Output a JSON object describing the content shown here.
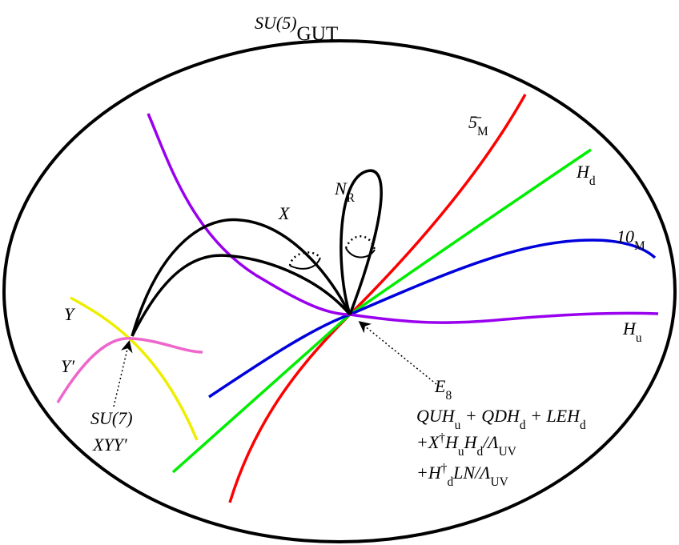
{
  "title": [
    {
      "text": "SU(5)"
    },
    {
      "sub": "GUT"
    }
  ],
  "labels": [
    [
      {
        "text": "5̄"
      },
      {
        "sub": "M"
      }
    ],
    [
      {
        "text": "H"
      },
      {
        "sub": "d"
      }
    ],
    [
      {
        "text": "10"
      },
      {
        "sub": "M"
      }
    ],
    [
      {
        "text": "H"
      },
      {
        "sub": "u"
      }
    ],
    [
      {
        "text": "N"
      },
      {
        "sub": "R"
      }
    ],
    [
      {
        "text": "X"
      }
    ],
    [
      {
        "text": "Y"
      }
    ],
    [
      {
        "text": "Y′"
      }
    ],
    [
      {
        "text": "E"
      },
      {
        "sub": "8"
      }
    ],
    [
      {
        "text": "SU(7)"
      }
    ],
    [
      {
        "text": "XYY′"
      }
    ],
    [
      {
        "text": "QUH"
      },
      {
        "sub": "u"
      },
      {
        "text": " + QDH"
      },
      {
        "sub": "d"
      },
      {
        "text": " + LEH"
      },
      {
        "sub": "d"
      }
    ],
    [
      {
        "text": "+X"
      },
      {
        "sup": "†"
      },
      {
        "text": "H"
      },
      {
        "sub": "u"
      },
      {
        "text": "H"
      },
      {
        "sub": "d"
      },
      {
        "text": "/Λ"
      },
      {
        "sub": "UV"
      }
    ],
    [
      {
        "text": "+H"
      },
      {
        "sup": "†"
      },
      {
        "sub": "d"
      },
      {
        "text": "LN/Λ"
      },
      {
        "sub": "UV"
      }
    ]
  ]
}
